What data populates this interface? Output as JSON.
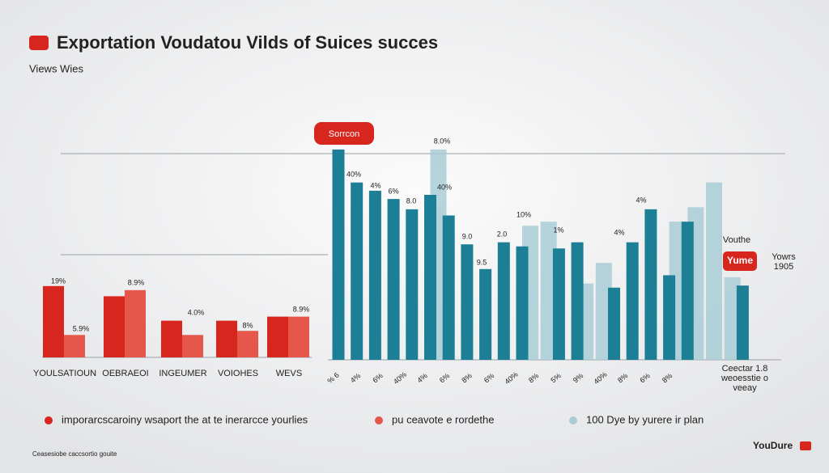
{
  "header": {
    "title": "Exportation Voudatou Vilds of Suices succes",
    "subtitle": "Views Wies",
    "badge": "Sorrcon"
  },
  "chart_data": [
    {
      "type": "bar",
      "categories": [
        "YOULSATIOUN",
        "OEBRAEOI",
        "INGEUMER",
        "VOIOHES",
        "WEVS"
      ],
      "series": [
        {
          "name": "imporarcscaroiny wsaport the at te inerarcce yourlies",
          "color": "#d7261e",
          "values": [
            35,
            30,
            18,
            18,
            20
          ]
        },
        {
          "name": "pu ceavote e rordethe",
          "color": "#e4574a",
          "values": [
            11,
            33,
            11,
            13,
            20
          ]
        }
      ],
      "ylim": [
        0,
        100
      ],
      "annotations": [
        "19%",
        "5.9%",
        "8.9%",
        "4.0%",
        "8%",
        "8.9%"
      ]
    },
    {
      "type": "bar",
      "categories": [
        null,
        null,
        null,
        null,
        null,
        null,
        null,
        null,
        null,
        null,
        null,
        null,
        null,
        null,
        null,
        null,
        null,
        null,
        null,
        null,
        null,
        null,
        null
      ],
      "series": [
        {
          "color": "#1c7f95",
          "values": [
            102,
            86,
            82,
            78,
            73,
            80,
            70,
            56,
            44,
            57,
            55,
            null,
            54,
            57,
            null,
            35,
            57,
            73,
            41,
            67,
            null,
            null,
            36
          ]
        },
        {
          "name": "100 Dye by yurere ir plan",
          "color": "#a9cdd6",
          "values": [
            null,
            null,
            null,
            null,
            null,
            102,
            null,
            null,
            null,
            null,
            65,
            67,
            null,
            37,
            47,
            null,
            null,
            null,
            67,
            74,
            86,
            40,
            null
          ]
        }
      ],
      "ylim": [
        0,
        110
      ],
      "annotations": [
        "8.0%",
        "40%",
        "4%",
        "6%",
        "8.0",
        "40%",
        "9.0",
        "9.5",
        "2.0",
        "10%",
        "1%",
        "4%",
        "4%"
      ],
      "tick_notes": [
        "% 6",
        "4%",
        "6%",
        "40%",
        "4%",
        "6%",
        "8%",
        "6%",
        "40%",
        "8%",
        "5%",
        "9%",
        "40%",
        "8%",
        "6%",
        "8%"
      ]
    }
  ],
  "side": {
    "label": "Vouthe",
    "badge": "Yume",
    "note1": "Yowrs",
    "note2": "1905",
    "note3": "Ceectar 1.8",
    "note4": "weoesstie o",
    "note5": "veeay"
  },
  "footer": {
    "left": "Ceasesiobe caccsortio gouite",
    "right": "YouDure"
  }
}
